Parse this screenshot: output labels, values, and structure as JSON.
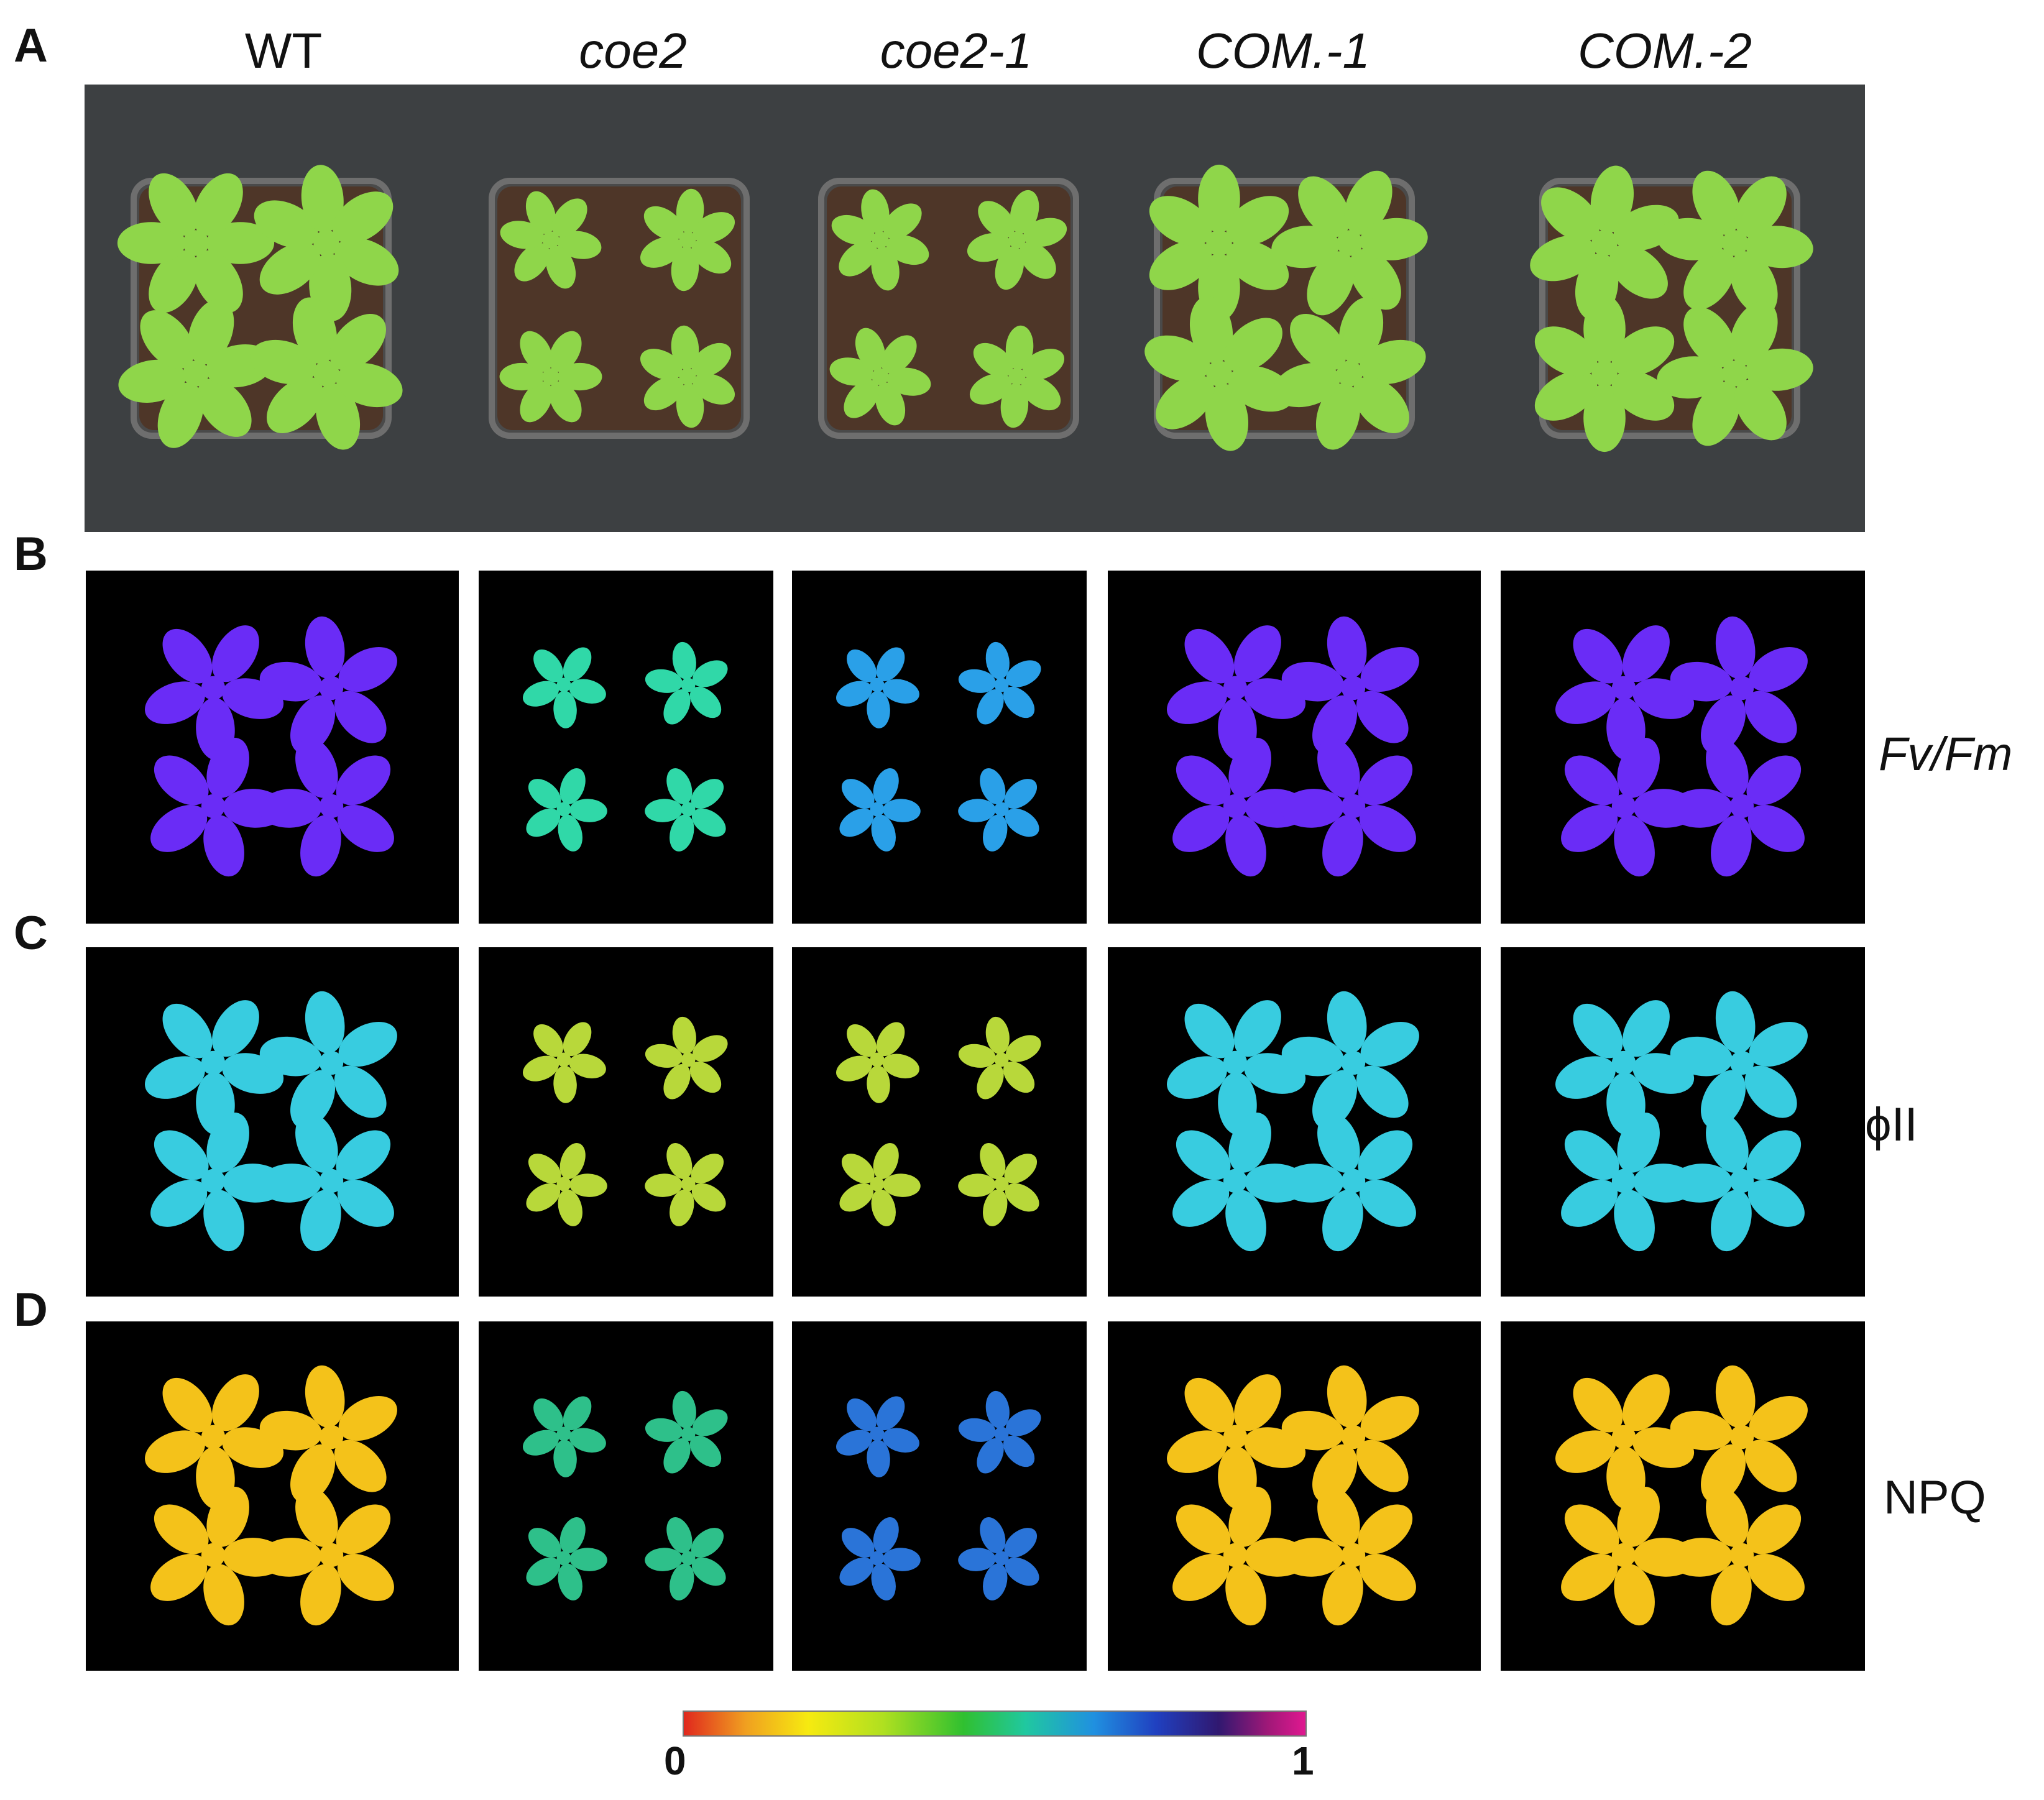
{
  "panels": {
    "a": "A",
    "b": "B",
    "c": "C",
    "d": "D"
  },
  "genotypes": [
    "WT",
    "coe2",
    "coe2-1",
    "COM.-1",
    "COM.-2"
  ],
  "rows": {
    "b_label": "Fv/Fm",
    "c_label": "ϕII",
    "d_label": "NPQ"
  },
  "colors": {
    "fvfm_wt": "#6a2cf6",
    "fvfm_mut_a": "#30d8a8",
    "fvfm_mut_b": "#2aa0e8",
    "phi_wt": "#38cce0",
    "phi_mut": "#b8d83a",
    "npq_wt": "#f4c21a",
    "npq_mut_a": "#2ec08a",
    "npq_mut_b": "#2a74d8",
    "leaf_green": "#8fd64a"
  },
  "scale": {
    "min": "0",
    "max": "1"
  }
}
